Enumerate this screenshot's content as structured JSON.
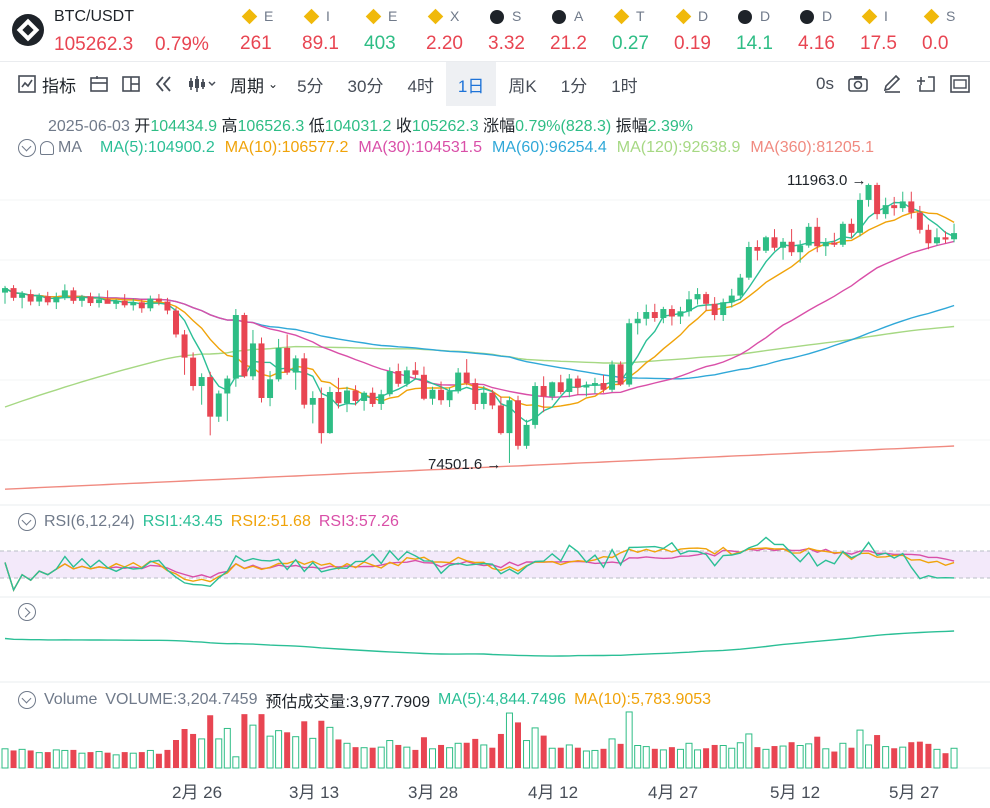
{
  "header": {
    "symbol": "BTC/USDT",
    "price": "105262.3",
    "change_pct": "0.79%"
  },
  "ticker_items": [
    {
      "icon": "bnb-icon",
      "symbol": "E",
      "value": "261",
      "trend": "dn"
    },
    {
      "icon": "bnb-icon",
      "symbol": "I",
      "value": "89.1",
      "trend": "dn"
    },
    {
      "icon": "bnb-icon",
      "symbol": "E",
      "value": "403",
      "trend": "up"
    },
    {
      "icon": "bnb-icon",
      "symbol": "X",
      "value": "2.20",
      "trend": "dn"
    },
    {
      "icon": "binance-icon",
      "symbol": "S",
      "value": "3.32",
      "trend": "dn"
    },
    {
      "icon": "binance-icon",
      "symbol": "A",
      "value": "21.2",
      "trend": "dn"
    },
    {
      "icon": "bnb-icon",
      "symbol": "T",
      "value": "0.27",
      "trend": "up"
    },
    {
      "icon": "bnb-icon",
      "symbol": "D",
      "value": "0.19",
      "trend": "dn"
    },
    {
      "icon": "binance-icon",
      "symbol": "D",
      "value": "14.1",
      "trend": "up"
    },
    {
      "icon": "binance-icon",
      "symbol": "D",
      "value": "4.16",
      "trend": "dn"
    },
    {
      "icon": "bnb-icon",
      "symbol": "I",
      "value": "17.5",
      "trend": "dn"
    },
    {
      "icon": "bnb-icon",
      "symbol": "S",
      "value": "0.0",
      "trend": "dn"
    }
  ],
  "toolbar": {
    "indicators": "指标",
    "period": "周期",
    "intervals": [
      "5分",
      "30分",
      "4时",
      "1日",
      "周K",
      "1分",
      "1时"
    ],
    "active_interval": "1日",
    "seconds": "0s"
  },
  "ohlc": {
    "date": "2025-06-03",
    "open_label": "开",
    "open": "104434.9",
    "high_label": "高",
    "high": "106526.3",
    "low_label": "低",
    "low": "104031.2",
    "close_label": "收",
    "close": "105262.3",
    "change_label": "涨幅",
    "change": "0.79%(828.3)",
    "amp_label": "振幅",
    "amp": "2.39%"
  },
  "ma": {
    "label": "MA",
    "ma5": "MA(5):104900.2",
    "ma10": "MA(10):106577.2",
    "ma30": "MA(30):104531.5",
    "ma60": "MA(60):96254.4",
    "ma120": "MA(120):92638.9",
    "ma360": "MA(360):81205.1",
    "colors": {
      "ma5": "#2bbf96",
      "ma10": "#f0a30a",
      "ma30": "#d94fa8",
      "ma60": "#30a8d8",
      "ma120": "#a6d883",
      "ma360": "#f08a80"
    }
  },
  "annotations": {
    "high": "111963.0",
    "low": "74501.6"
  },
  "rsi": {
    "label": "RSI(6,12,24)",
    "rsi1": "RSI1:43.45",
    "rsi2": "RSI2:51.68",
    "rsi3": "RSI3:57.26"
  },
  "volume": {
    "label": "Volume",
    "volume": "VOLUME:3,204.7459",
    "estimate": "预估成交量:3,977.7909",
    "ma5": "MA(5):4,844.7496",
    "ma10": "MA(10):5,783.9053"
  },
  "x_labels": [
    "2月 26",
    "3月 13",
    "3月 28",
    "4月 12",
    "4月 27",
    "5月 12",
    "5月 27"
  ],
  "chart_data": {
    "type": "candlestick",
    "ylim": [
      70000,
      115000
    ],
    "candles": [
      [
        97300,
        98200,
        95800,
        97900
      ],
      [
        97900,
        98300,
        96200,
        96600
      ],
      [
        96600,
        97500,
        95200,
        97100
      ],
      [
        97100,
        97700,
        95600,
        96100
      ],
      [
        96100,
        97200,
        95500,
        96800
      ],
      [
        96800,
        97400,
        95600,
        96000
      ],
      [
        96000,
        97300,
        95100,
        96700
      ],
      [
        96700,
        98400,
        96300,
        97600
      ],
      [
        97600,
        98000,
        95800,
        96200
      ],
      [
        96200,
        97000,
        95400,
        96800
      ],
      [
        96800,
        97300,
        95500,
        95900
      ],
      [
        95900,
        97200,
        95300,
        96400
      ],
      [
        96400,
        97600,
        95900,
        95800
      ],
      [
        95800,
        96400,
        95100,
        96200
      ],
      [
        96200,
        97100,
        95300,
        95600
      ],
      [
        95600,
        96500,
        94900,
        96000
      ],
      [
        96000,
        96400,
        94600,
        95200
      ],
      [
        95200,
        96900,
        94800,
        96500
      ],
      [
        96500,
        97100,
        95600,
        96100
      ],
      [
        96100,
        96600,
        94400,
        94900
      ],
      [
        94900,
        95300,
        91300,
        91700
      ],
      [
        91700,
        92300,
        86300,
        88600
      ],
      [
        88600,
        89300,
        84200,
        84800
      ],
      [
        84800,
        86500,
        82300,
        86000
      ],
      [
        86000,
        86700,
        78200,
        80700
      ],
      [
        80700,
        84200,
        80000,
        83800
      ],
      [
        83800,
        86200,
        80100,
        85800
      ],
      [
        85800,
        95100,
        84700,
        94300
      ],
      [
        94300,
        94600,
        85900,
        86100
      ],
      [
        86100,
        92300,
        85600,
        90500
      ],
      [
        90500,
        91300,
        82600,
        83200
      ],
      [
        83200,
        86800,
        82100,
        85700
      ],
      [
        85700,
        91100,
        85400,
        89900
      ],
      [
        89900,
        91700,
        86300,
        86600
      ],
      [
        86600,
        88900,
        84300,
        88500
      ],
      [
        88500,
        89200,
        81800,
        82300
      ],
      [
        82300,
        84100,
        79800,
        83200
      ],
      [
        83200,
        84600,
        77100,
        78500
      ],
      [
        78500,
        84700,
        78400,
        84000
      ],
      [
        84000,
        85900,
        81800,
        82500
      ],
      [
        82500,
        84700,
        81300,
        84200
      ],
      [
        84200,
        84900,
        82200,
        82800
      ],
      [
        82800,
        84100,
        81500,
        83900
      ],
      [
        83900,
        84600,
        82000,
        82400
      ],
      [
        82400,
        84300,
        81600,
        83700
      ],
      [
        83700,
        87300,
        83400,
        86800
      ],
      [
        86800,
        87800,
        84700,
        85100
      ],
      [
        85100,
        87400,
        84700,
        86900
      ],
      [
        86900,
        88000,
        85800,
        86300
      ],
      [
        86300,
        87400,
        82900,
        83100
      ],
      [
        83100,
        84700,
        82300,
        84300
      ],
      [
        84300,
        85400,
        82300,
        82900
      ],
      [
        82900,
        84600,
        82000,
        84100
      ],
      [
        84100,
        87200,
        83800,
        86600
      ],
      [
        86600,
        88400,
        84900,
        85200
      ],
      [
        85200,
        85800,
        81600,
        82400
      ],
      [
        82400,
        84800,
        81700,
        83900
      ],
      [
        83900,
        84300,
        81700,
        82200
      ],
      [
        82200,
        83400,
        78300,
        78500
      ],
      [
        78500,
        83400,
        74500,
        82900
      ],
      [
        82900,
        83500,
        76300,
        76800
      ],
      [
        76800,
        80300,
        76400,
        79600
      ],
      [
        79600,
        85300,
        79100,
        84800
      ],
      [
        84800,
        86100,
        81300,
        83400
      ],
      [
        83400,
        85400,
        82900,
        85300
      ],
      [
        85300,
        86300,
        83700,
        84000
      ],
      [
        84000,
        86400,
        83300,
        85800
      ],
      [
        85800,
        86200,
        83600,
        84600
      ],
      [
        84600,
        85400,
        83400,
        84900
      ],
      [
        84900,
        85900,
        83800,
        85200
      ],
      [
        85200,
        86300,
        83900,
        84300
      ],
      [
        84300,
        88200,
        84000,
        87700
      ],
      [
        87700,
        88100,
        84800,
        85000
      ],
      [
        85000,
        93800,
        84700,
        93200
      ],
      [
        93200,
        94700,
        91700,
        93800
      ],
      [
        93800,
        95700,
        92900,
        94700
      ],
      [
        94700,
        95800,
        93400,
        93900
      ],
      [
        93900,
        95400,
        93200,
        95100
      ],
      [
        95100,
        95600,
        92900,
        94100
      ],
      [
        94100,
        95400,
        93100,
        94800
      ],
      [
        94800,
        97500,
        94100,
        96400
      ],
      [
        96400,
        97900,
        95700,
        97100
      ],
      [
        97100,
        97400,
        94900,
        95800
      ],
      [
        95800,
        96700,
        93600,
        94300
      ],
      [
        94300,
        96500,
        93500,
        96000
      ],
      [
        96000,
        97800,
        95300,
        96900
      ],
      [
        96900,
        99800,
        96300,
        99300
      ],
      [
        99300,
        104100,
        99000,
        103400
      ],
      [
        103400,
        104300,
        101600,
        102900
      ],
      [
        102900,
        104900,
        102600,
        104700
      ],
      [
        104700,
        105800,
        102900,
        103300
      ],
      [
        103300,
        104600,
        101700,
        104100
      ],
      [
        104100,
        105800,
        102200,
        102700
      ],
      [
        102700,
        104300,
        101300,
        103600
      ],
      [
        103600,
        106600,
        103300,
        106100
      ],
      [
        106100,
        107300,
        102700,
        103500
      ],
      [
        103500,
        104600,
        102200,
        104000
      ],
      [
        104000,
        105300,
        103400,
        103700
      ],
      [
        103700,
        106800,
        103400,
        106500
      ],
      [
        106500,
        107200,
        104600,
        105300
      ],
      [
        105300,
        110600,
        104800,
        109700
      ],
      [
        109700,
        111900,
        108800,
        111700
      ],
      [
        111700,
        112000,
        107100,
        107800
      ],
      [
        107800,
        110000,
        107200,
        109000
      ],
      [
        109000,
        110100,
        107600,
        108600
      ],
      [
        108600,
        110800,
        108100,
        109500
      ],
      [
        109500,
        110800,
        107200,
        108000
      ],
      [
        108000,
        108900,
        105200,
        105700
      ],
      [
        105700,
        106400,
        103100,
        103900
      ],
      [
        103900,
        105900,
        103600,
        104700
      ],
      [
        104700,
        105500,
        103900,
        104400
      ],
      [
        104434.9,
        106526.3,
        104031.2,
        105262.3
      ]
    ]
  }
}
